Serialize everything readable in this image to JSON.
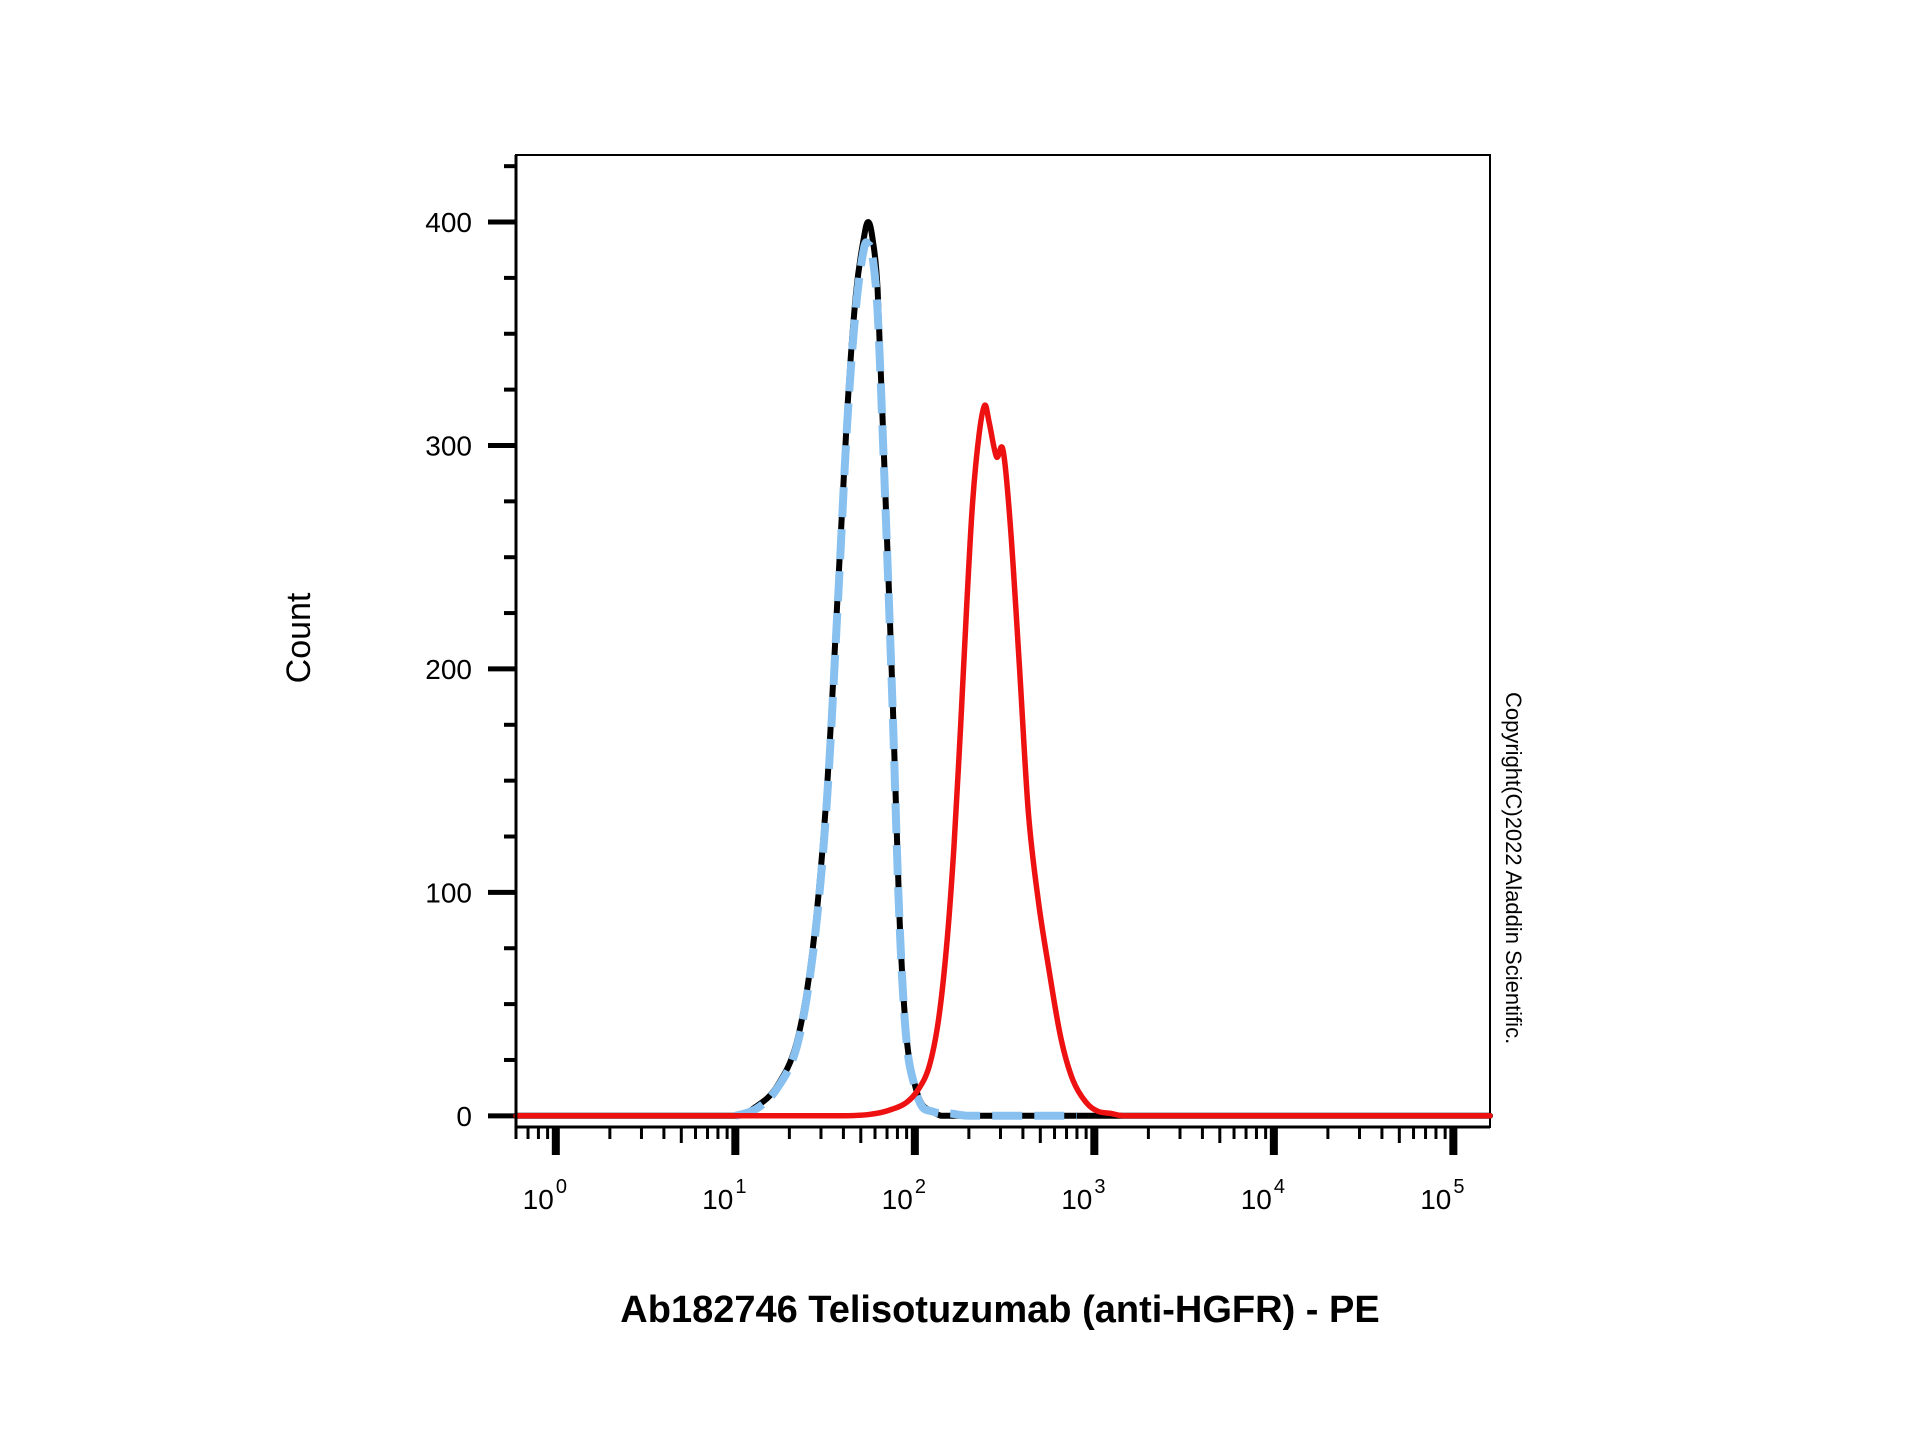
{
  "colors": {
    "background": "#ffffff",
    "axis": "#000000",
    "unstained": "#000000",
    "isotype": "#88c1f0",
    "stained": "#ee1111"
  },
  "copyright": "Copyright(C)2022 Aladdin Scientific.",
  "chart_data": {
    "type": "line",
    "title": "",
    "xlabel": "Ab182746 Telisotuzumab (anti-HGFR) - PE",
    "ylabel": "Count",
    "x_scale": "log",
    "xlim": [
      0.6,
      160000
    ],
    "ylim": [
      -5,
      430
    ],
    "grid": false,
    "legend": "none",
    "x_ticks": [
      {
        "base": "10",
        "exp": "0",
        "value": 1
      },
      {
        "base": "10",
        "exp": "1",
        "value": 10
      },
      {
        "base": "10",
        "exp": "2",
        "value": 100
      },
      {
        "base": "10",
        "exp": "3",
        "value": 1000
      },
      {
        "base": "10",
        "exp": "4",
        "value": 10000
      },
      {
        "base": "10",
        "exp": "5",
        "value": 100000
      }
    ],
    "y_ticks": [
      {
        "label": "0",
        "value": 0
      },
      {
        "label": "100",
        "value": 100
      },
      {
        "label": "200",
        "value": 200
      },
      {
        "label": "300",
        "value": 300
      },
      {
        "label": "400",
        "value": 400
      }
    ],
    "series": [
      {
        "style": "solid",
        "color": "#000000",
        "x": [
          0.6,
          1,
          5,
          10,
          13,
          17,
          22,
          27,
          32,
          37,
          42,
          47,
          52,
          55,
          58,
          62,
          67,
          75,
          82,
          90,
          100,
          110,
          125,
          140,
          160,
          200,
          300,
          1000,
          10000,
          160000
        ],
        "y": [
          0,
          0,
          0,
          0,
          4,
          13,
          33,
          75,
          140,
          230,
          315,
          368,
          393,
          400,
          393,
          370,
          300,
          190,
          90,
          35,
          14,
          5,
          2,
          0,
          0,
          0,
          0,
          0,
          0,
          0
        ]
      },
      {
        "style": "dashed",
        "color": "#88c1f0",
        "x": [
          10,
          13,
          17,
          22,
          27,
          32,
          37,
          42,
          47,
          52,
          55,
          58,
          62,
          67,
          75,
          82,
          90,
          100,
          110,
          125,
          140,
          160,
          200,
          300,
          500,
          800
        ],
        "y": [
          0,
          3,
          12,
          31,
          72,
          135,
          225,
          310,
          362,
          388,
          390,
          385,
          360,
          295,
          185,
          88,
          33,
          13,
          4,
          2,
          1,
          1,
          0,
          0,
          0,
          0
        ]
      },
      {
        "style": "solid",
        "color": "#ee1111",
        "x": [
          0.6,
          10,
          40,
          60,
          75,
          90,
          105,
          120,
          135,
          150,
          165,
          180,
          195,
          210,
          228,
          245,
          260,
          285,
          310,
          340,
          380,
          430,
          490,
          560,
          650,
          760,
          900,
          1050,
          1250,
          1450,
          2000,
          10000,
          160000
        ],
        "y": [
          0,
          0,
          0,
          1,
          3,
          6,
          12,
          22,
          42,
          75,
          120,
          175,
          230,
          275,
          305,
          318,
          310,
          295,
          298,
          265,
          205,
          135,
          95,
          65,
          35,
          16,
          6,
          2,
          1,
          0,
          0,
          0,
          0
        ]
      }
    ]
  }
}
